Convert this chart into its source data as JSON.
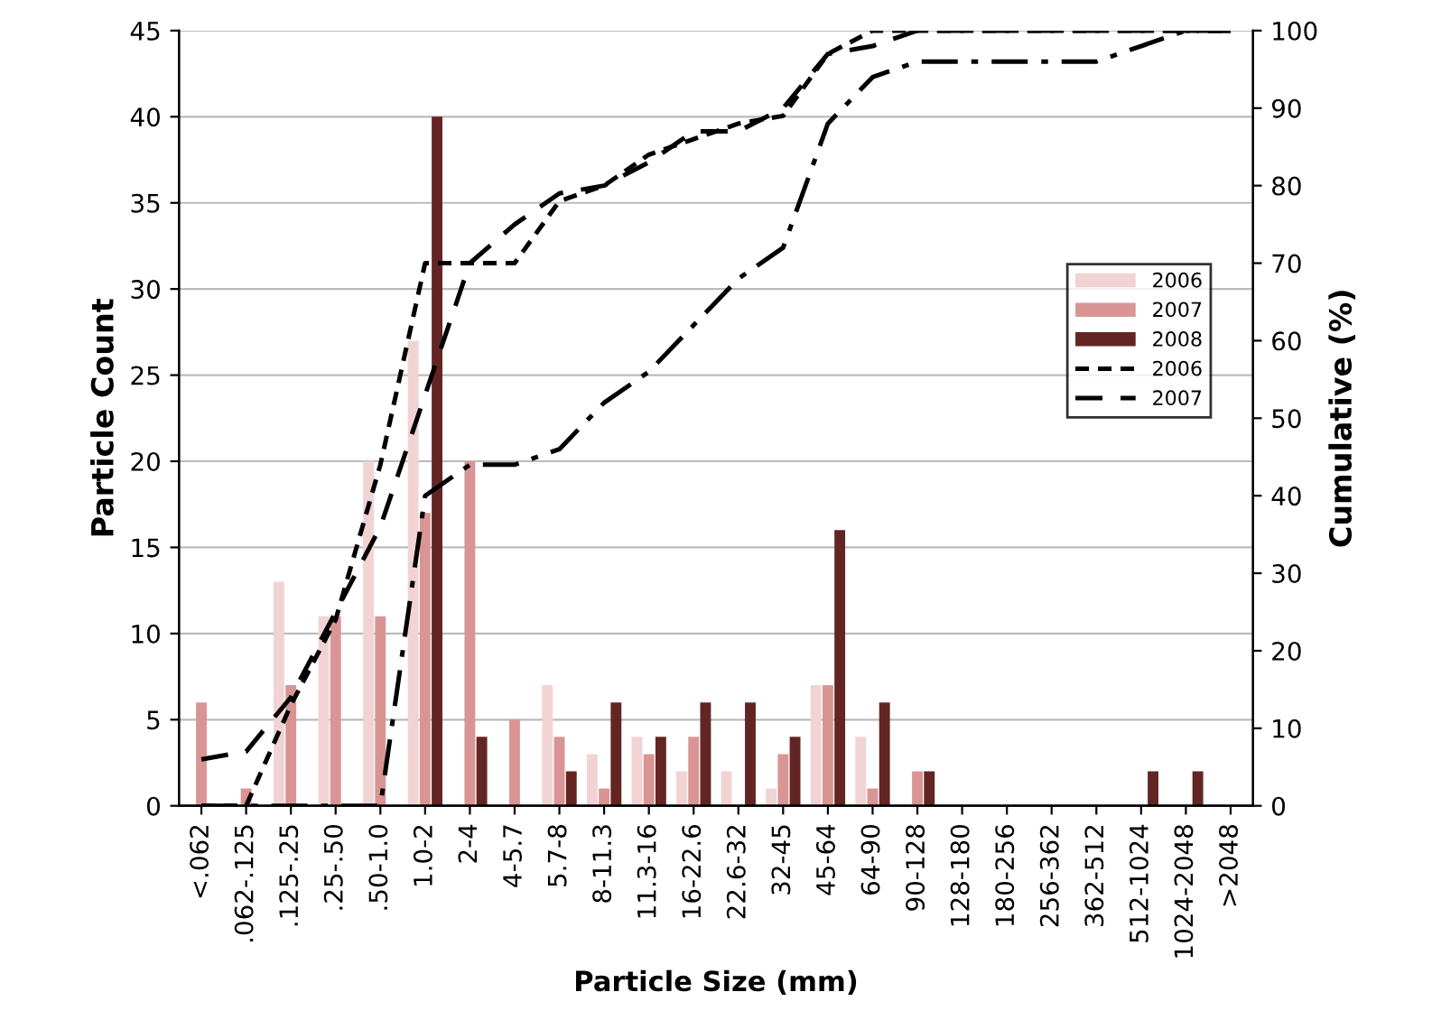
{
  "chart_data": {
    "type": "bar",
    "xlabel": "Particle Size (mm)",
    "ylabel": "Particle Count",
    "y2label": "Cumulative (%)",
    "categories": [
      "<.062",
      ".062-.125",
      ".125-.25",
      ".25-.50",
      ".50-1.0",
      "1.0-2",
      "2-4",
      "4-5.7",
      "5.7-8",
      "8-11.3",
      "11.3-16",
      "16-22.6",
      "22.6-32",
      "32-45",
      "45-64",
      "64-90",
      "90-128",
      "128-180",
      "180-256",
      "256-362",
      "362-512",
      "512-1024",
      "1024-2048",
      ">2048"
    ],
    "series": [
      {
        "name": "2006",
        "color": "#f2d3d3",
        "values": [
          0,
          0,
          13,
          11,
          20,
          27,
          0,
          0,
          7,
          3,
          4,
          2,
          2,
          1,
          7,
          4,
          0,
          0,
          0,
          0,
          0,
          0,
          0,
          0
        ]
      },
      {
        "name": "2007",
        "color": "#d99594",
        "values": [
          6,
          1,
          7,
          11,
          11,
          17,
          20,
          5,
          4,
          1,
          3,
          4,
          0,
          3,
          7,
          1,
          2,
          0,
          0,
          0,
          0,
          0,
          0,
          0
        ]
      },
      {
        "name": "2008",
        "color": "#632523",
        "values": [
          0,
          0,
          0,
          0,
          0,
          40,
          4,
          0,
          2,
          6,
          4,
          6,
          6,
          4,
          16,
          6,
          2,
          0,
          0,
          0,
          0,
          2,
          2,
          0
        ]
      },
      {
        "name": "2006",
        "type": "line",
        "axis": "y2",
        "color": "#000000",
        "line_style": "dotted",
        "values": [
          0,
          0,
          13,
          24,
          44,
          70,
          70,
          70,
          78,
          80,
          84,
          86,
          88,
          89,
          97,
          100,
          100,
          100,
          100,
          100,
          100,
          100,
          100,
          100
        ]
      },
      {
        "name": "2007",
        "type": "line",
        "axis": "y2",
        "color": "#000000",
        "line_style": "dashed",
        "values": [
          6,
          7,
          14,
          25,
          36,
          53,
          70,
          75,
          79,
          80,
          83,
          87,
          87,
          90,
          97,
          98,
          100,
          100,
          100,
          100,
          100,
          100,
          100,
          100
        ]
      },
      {
        "type": "line",
        "axis": "y2",
        "color": "#000000",
        "line_style": "dashdot",
        "values": [
          0,
          0,
          0,
          0,
          0,
          40,
          44,
          44,
          46,
          52,
          56,
          62,
          68,
          72,
          88,
          94,
          96,
          96,
          96,
          96,
          96,
          98,
          100,
          100
        ]
      }
    ],
    "ylim": [
      0,
      45
    ],
    "yticks": [
      0,
      5,
      10,
      15,
      20,
      25,
      30,
      35,
      40,
      45
    ],
    "y2lim": [
      0,
      100
    ],
    "y2ticks": [
      0,
      10,
      20,
      30,
      40,
      50,
      60,
      70,
      80,
      90,
      100
    ],
    "grid": "y",
    "legend": "right"
  }
}
